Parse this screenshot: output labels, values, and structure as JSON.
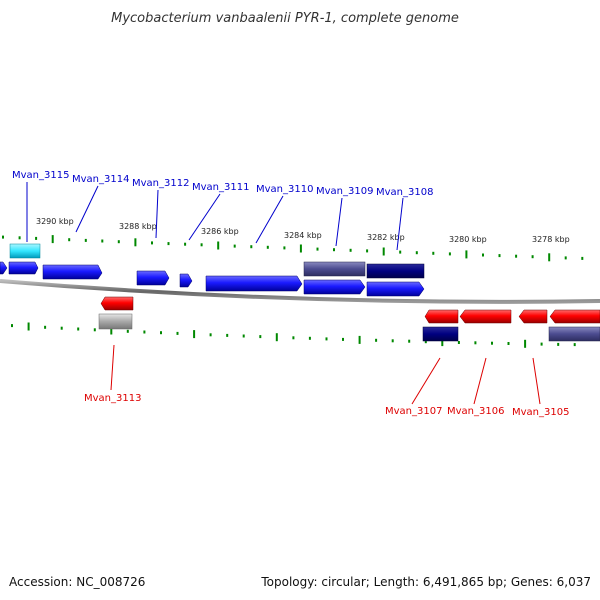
{
  "title": "Mycobacterium vanbaalenii PYR-1, complete genome",
  "footer": {
    "accession": "Accession: NC_008726",
    "summary": "Topology: circular; Length: 6,491,865 bp; Genes: 6,037"
  },
  "scale_labels": [
    "3290 kbp",
    "3288 kbp",
    "3286 kbp",
    "3284 kbp",
    "3282 kbp",
    "3280 kbp",
    "3278 kbp"
  ],
  "colors": {
    "forward_gene": "#1a1aff",
    "forward_gene_dark": "#000080",
    "forward_gene_purple": "#4b4b8f",
    "forward_gene_cyan": "#33e6ff",
    "reverse_gene": "#ff0000",
    "reverse_gene_dark": "#000066",
    "reverse_gene_purple": "#4b4b8f",
    "reverse_gene_gray": "#a8a8a8",
    "forward_label": "#0000cc",
    "reverse_label": "#dd0000",
    "tick": "#008800",
    "backbone": "#777777"
  },
  "forward_labels": [
    "Mvan_3115",
    "Mvan_3114",
    "Mvan_3112",
    "Mvan_3111",
    "Mvan_3110",
    "Mvan_3109",
    "Mvan_3108"
  ],
  "reverse_labels": [
    "Mvan_3113",
    "Mvan_3107",
    "Mvan_3106",
    "Mvan_3105"
  ]
}
